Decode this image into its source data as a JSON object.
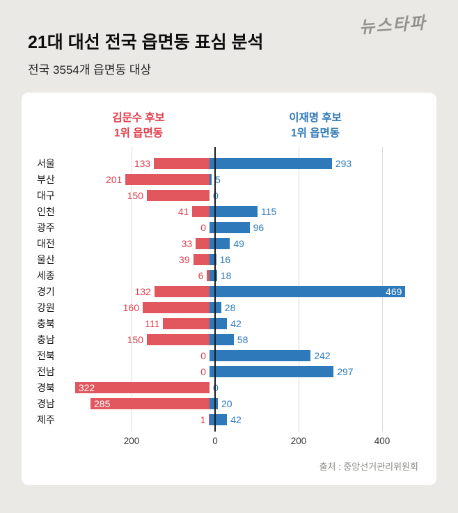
{
  "logo": "뉴스타파",
  "header": {
    "title": "21대 대선 전국 읍면동 표심 분석",
    "subtitle": "전국 3554개 읍면동 대상"
  },
  "legend": {
    "left_line1": "김문수 후보",
    "left_line2": "1위 읍면동",
    "right_line1": "이재명 후보",
    "right_line2": "1위 읍면동"
  },
  "colors": {
    "red_bar": "#e2565e",
    "red_text": "#e03d4a",
    "blue_bar": "#2e79b9",
    "blue_text": "#2e79b9"
  },
  "chart_data": {
    "type": "bar",
    "orientation": "horizontal-diverging",
    "title": "21대 대선 전국 읍면동 표심 분석",
    "subtitle": "전국 3554개 읍면동 대상",
    "categories": [
      "서울",
      "부산",
      "대구",
      "인천",
      "광주",
      "대전",
      "울산",
      "세종",
      "경기",
      "강원",
      "충북",
      "충남",
      "전북",
      "전남",
      "경북",
      "경남",
      "제주"
    ],
    "series": [
      {
        "name": "김문수 후보 1위 읍면동",
        "direction": "left",
        "color": "#e2565e",
        "values": [
          133,
          201,
          150,
          41,
          0,
          33,
          39,
          6,
          132,
          160,
          111,
          150,
          0,
          0,
          322,
          285,
          1
        ]
      },
      {
        "name": "이재명 후보 1위 읍면동",
        "direction": "right",
        "color": "#2e79b9",
        "values": [
          293,
          5,
          0,
          115,
          96,
          49,
          16,
          18,
          469,
          28,
          42,
          58,
          242,
          297,
          0,
          20,
          42
        ]
      }
    ],
    "ticks": [
      -200,
      0,
      200,
      400
    ],
    "tick_labels": [
      "200",
      "0",
      "200",
      "400"
    ],
    "xlim": [
      -340,
      490
    ],
    "grid": true,
    "legend_position": "top"
  },
  "source": "출처 : 중앙선거관리위원회"
}
